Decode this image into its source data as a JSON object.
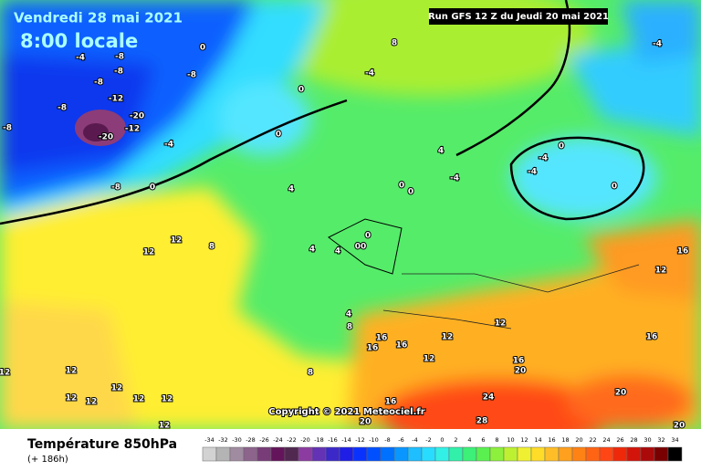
{
  "header": {
    "date": "Vendredi 28 mai 2021",
    "time": "8:00 locale",
    "run": "Run GFS 12 Z du Jeudi 20 mai 2021"
  },
  "map_labels": [
    "0",
    "8",
    "-4",
    "-8",
    "-4",
    "-8",
    "-8",
    "-4",
    "-8",
    "-12",
    "-20",
    "-12",
    "-20",
    "-8",
    "-8",
    "-4",
    "-8",
    "0",
    "0",
    "0",
    "4",
    "-4",
    "-4",
    "-4",
    "0",
    "0",
    "4",
    "0",
    "0",
    "0",
    "00",
    "4",
    "4",
    "8",
    "12",
    "12",
    "16",
    "12",
    "12",
    "4",
    "8",
    "16",
    "16",
    "16",
    "12",
    "12",
    "16",
    "20",
    "16",
    "20",
    "24",
    "28",
    "16",
    "20",
    "8",
    "12",
    "12",
    "12",
    "12",
    "12",
    "12",
    "12",
    "12",
    "20"
  ],
  "copyright": "Copyright © 2021 Meteociel.fr",
  "footer": {
    "title": "Température 850hPa",
    "lead": "(+ 186h)"
  },
  "scale": {
    "values": [
      -34,
      -32,
      -30,
      -28,
      -26,
      -24,
      -22,
      -20,
      -18,
      -16,
      -14,
      -12,
      -10,
      -8,
      -6,
      -4,
      -2,
      0,
      2,
      4,
      6,
      8,
      10,
      12,
      14,
      16,
      18,
      20,
      22,
      24,
      26,
      28,
      30,
      32,
      34
    ],
    "colors": [
      "#d2d2d2",
      "#b4b4b4",
      "#a08ca0",
      "#8c648c",
      "#783c78",
      "#64145a",
      "#502850",
      "#8c3ca0",
      "#6432b4",
      "#3c28c8",
      "#1e1ee6",
      "#0a32ff",
      "#0050ff",
      "#0070ff",
      "#0a96ff",
      "#1ebeff",
      "#28dcff",
      "#32f0e6",
      "#32f0aa",
      "#3cf078",
      "#5af050",
      "#8cf03c",
      "#bef032",
      "#f0f032",
      "#ffdc28",
      "#ffbe28",
      "#ffa01e",
      "#ff8214",
      "#ff6414",
      "#ff4614",
      "#f0280a",
      "#d2140a",
      "#aa0a0a",
      "#780000",
      "#000000"
    ]
  }
}
